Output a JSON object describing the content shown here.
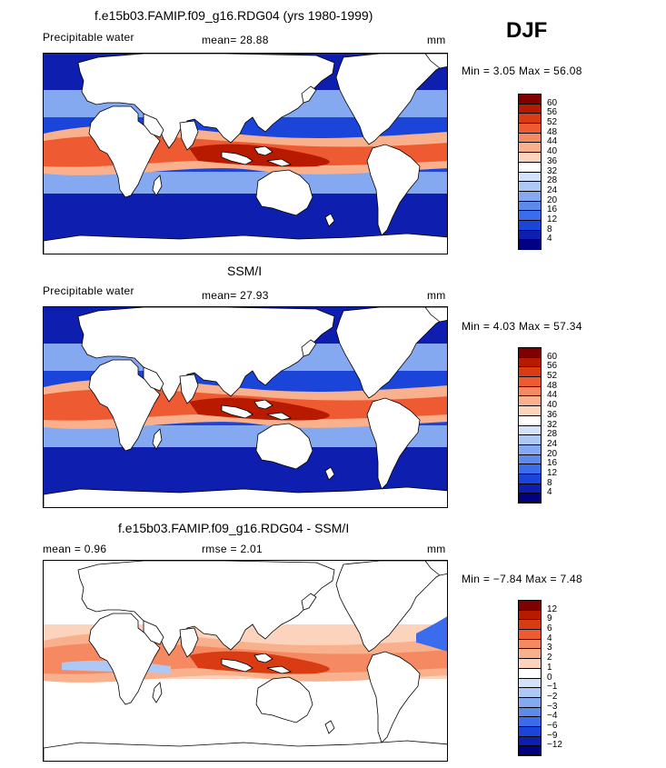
{
  "season": "DJF",
  "panels": [
    {
      "title": "f.e15b03.FAMIP.f09_g16.RDG04 (yrs 1980-1999)",
      "left_label": "Precipitable water",
      "center_label": "mean=  28.88",
      "unit": "mm",
      "minmax": "Min =    3.05  Max =   56.08",
      "colorbar": {
        "levels": [
          "60",
          "56",
          "52",
          "48",
          "44",
          "40",
          "36",
          "32",
          "28",
          "24",
          "20",
          "16",
          "12",
          "8",
          "4"
        ],
        "colors": [
          "#800000",
          "#b81a00",
          "#d93b12",
          "#ee5b32",
          "#f58a62",
          "#f9b08d",
          "#fcd4bd",
          "#ffffff",
          "#d3e2fa",
          "#aec8f6",
          "#84a9f0",
          "#5e8aec",
          "#3b6cee",
          "#1a45d8",
          "#0e1fb0",
          "#000080"
        ]
      }
    },
    {
      "title": "SSM/I",
      "left_label": "Precipitable water",
      "center_label": "mean=  27.93",
      "unit": "mm",
      "minmax": "Min =    4.03  Max =   57.34",
      "colorbar": {
        "levels": [
          "60",
          "56",
          "52",
          "48",
          "44",
          "40",
          "36",
          "32",
          "28",
          "24",
          "20",
          "16",
          "12",
          "8",
          "4"
        ],
        "colors": [
          "#800000",
          "#b81a00",
          "#d93b12",
          "#ee5b32",
          "#f58a62",
          "#f9b08d",
          "#fcd4bd",
          "#ffffff",
          "#d3e2fa",
          "#aec8f6",
          "#84a9f0",
          "#5e8aec",
          "#3b6cee",
          "#1a45d8",
          "#0e1fb0",
          "#000080"
        ]
      }
    },
    {
      "title": "f.e15b03.FAMIP.f09_g16.RDG04 - SSM/I",
      "left_label": "mean =   0.96",
      "center_label": "rmse =   2.01",
      "unit": "mm",
      "minmax": "Min =  −7.84  Max =    7.48",
      "colorbar": {
        "levels": [
          "12",
          "9",
          "6",
          "4",
          "3",
          "2",
          "1",
          "0",
          "−1",
          "−2",
          "−3",
          "−4",
          "−6",
          "−9",
          "−12"
        ],
        "colors": [
          "#800000",
          "#b81a00",
          "#d93b12",
          "#ee5b32",
          "#f58a62",
          "#f9b08d",
          "#fcd4bd",
          "#ffffff",
          "#d3e2fa",
          "#aec8f6",
          "#84a9f0",
          "#5e8aec",
          "#3b6cee",
          "#1a45d8",
          "#0e1fb0",
          "#000080"
        ]
      }
    }
  ]
}
